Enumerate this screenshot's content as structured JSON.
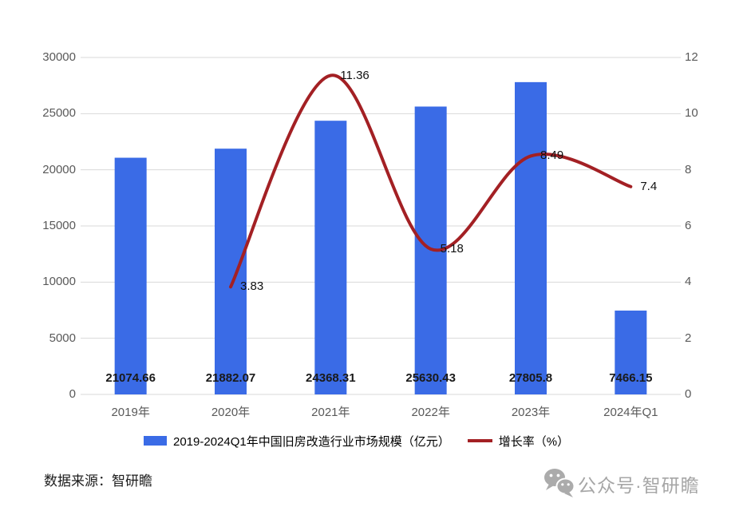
{
  "chart_data": {
    "type": "combo",
    "categories": [
      "2019年",
      "2020年",
      "2021年",
      "2022年",
      "2023年",
      "2024年Q1"
    ],
    "series": [
      {
        "name": "2019-2024Q1年中国旧房改造行业市场规模（亿元）",
        "type": "bar",
        "axis": "left",
        "color": "#3a6be6",
        "values": [
          21074.66,
          21882.07,
          24368.31,
          25630.43,
          27805.8,
          7466.15
        ]
      },
      {
        "name": "增长率（%）",
        "type": "line",
        "axis": "right",
        "color": "#a32024",
        "values": [
          null,
          3.83,
          11.36,
          5.18,
          8.49,
          7.4
        ]
      }
    ],
    "axes": {
      "left": {
        "min": 0,
        "max": 30000,
        "ticks_top_to_bottom": [
          30000,
          25000,
          20000,
          15000,
          10000,
          5000,
          0
        ]
      },
      "right": {
        "min": 0,
        "max": 12,
        "ticks_top_to_bottom": [
          12,
          10,
          8,
          6,
          4,
          2,
          0
        ]
      }
    },
    "grid": true,
    "gridline_color": "#d9d9d9",
    "legend_position": "bottom"
  },
  "footer": {
    "source": "数据来源：智研瞻",
    "wechat_label": "公众号·智研瞻"
  },
  "colors": {
    "bar": "#3a6be6",
    "line": "#a32024",
    "axis_text": "#595959",
    "label_text": "#1a1a1a",
    "footer_gray": "#a6a6a6"
  }
}
